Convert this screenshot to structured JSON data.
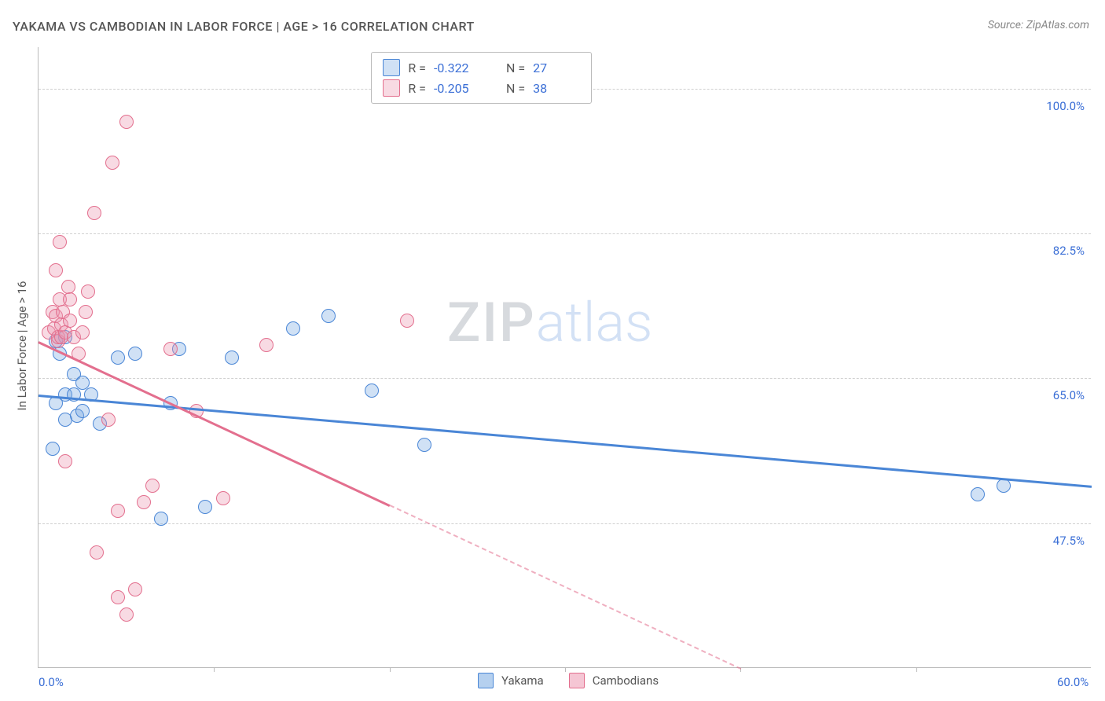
{
  "title": "YAKAMA VS CAMBODIAN IN LABOR FORCE | AGE > 16 CORRELATION CHART",
  "source_label": "Source: ZipAtlas.com",
  "y_axis_title": "In Labor Force | Age > 16",
  "watermark": {
    "a": "ZIP",
    "b": "atlas"
  },
  "chart": {
    "type": "scatter",
    "background_color": "#ffffff",
    "grid_color": "#d0d0d0",
    "axis_color": "#bbbbbb",
    "tick_label_color": "#3b6fd6",
    "title_color": "#555555",
    "xlim": [
      0,
      60
    ],
    "ylim": [
      30,
      105
    ],
    "x_ticks": [
      0,
      10,
      20,
      30,
      40,
      50,
      60
    ],
    "x_tick_labels_shown": {
      "0": "0.0%",
      "60": "60.0%"
    },
    "y_gridlines": [
      47.5,
      65.0,
      82.5,
      100.0
    ],
    "y_tick_labels": [
      "47.5%",
      "65.0%",
      "82.5%",
      "100.0%"
    ],
    "marker_radius": 9,
    "marker_border_width": 1.5,
    "marker_fill_opacity": 0.25,
    "series": [
      {
        "name": "Yakama",
        "color": "#4a86d6",
        "fill": "rgba(120,170,225,0.35)",
        "stroke": "#4a86d6",
        "R": "-0.322",
        "N": "27",
        "points": [
          [
            0.8,
            56.5
          ],
          [
            1.0,
            62.0
          ],
          [
            1.0,
            69.5
          ],
          [
            1.2,
            68.0
          ],
          [
            1.5,
            60.0
          ],
          [
            1.5,
            63.0
          ],
          [
            1.5,
            70.0
          ],
          [
            2.0,
            63.0
          ],
          [
            2.0,
            65.5
          ],
          [
            2.2,
            60.5
          ],
          [
            2.5,
            61.0
          ],
          [
            2.5,
            64.5
          ],
          [
            3.0,
            63.0
          ],
          [
            3.5,
            59.5
          ],
          [
            4.5,
            67.5
          ],
          [
            5.5,
            68.0
          ],
          [
            7.0,
            48.0
          ],
          [
            7.5,
            62.0
          ],
          [
            8.0,
            68.5
          ],
          [
            9.5,
            49.5
          ],
          [
            11.0,
            67.5
          ],
          [
            14.5,
            71.0
          ],
          [
            16.5,
            72.5
          ],
          [
            19.0,
            63.5
          ],
          [
            22.0,
            57.0
          ],
          [
            53.5,
            51.0
          ],
          [
            55.0,
            52.0
          ]
        ],
        "trend": {
          "x1": 0,
          "y1": 63.0,
          "x2": 60,
          "y2": 52.0,
          "dashed_from_x": null
        }
      },
      {
        "name": "Cambodians",
        "color": "#e36f8e",
        "fill": "rgba(235,150,175,0.35)",
        "stroke": "#e36f8e",
        "R": "-0.205",
        "N": "38",
        "points": [
          [
            0.6,
            70.5
          ],
          [
            0.8,
            73.0
          ],
          [
            0.9,
            71.0
          ],
          [
            1.0,
            72.5
          ],
          [
            1.0,
            78.0
          ],
          [
            1.1,
            69.5
          ],
          [
            1.1,
            70.0
          ],
          [
            1.2,
            74.5
          ],
          [
            1.2,
            81.5
          ],
          [
            1.3,
            70.0
          ],
          [
            1.3,
            71.5
          ],
          [
            1.4,
            73.0
          ],
          [
            1.5,
            55.0
          ],
          [
            1.5,
            70.5
          ],
          [
            1.7,
            76.0
          ],
          [
            1.8,
            72.0
          ],
          [
            1.8,
            74.5
          ],
          [
            2.0,
            70.0
          ],
          [
            2.3,
            68.0
          ],
          [
            2.5,
            70.5
          ],
          [
            2.7,
            73.0
          ],
          [
            2.8,
            75.5
          ],
          [
            3.2,
            85.0
          ],
          [
            3.3,
            44.0
          ],
          [
            4.0,
            60.0
          ],
          [
            4.2,
            91.0
          ],
          [
            4.5,
            38.5
          ],
          [
            4.5,
            49.0
          ],
          [
            5.0,
            36.5
          ],
          [
            5.0,
            96.0
          ],
          [
            5.5,
            39.5
          ],
          [
            6.0,
            50.0
          ],
          [
            6.5,
            52.0
          ],
          [
            7.5,
            68.5
          ],
          [
            9.0,
            61.0
          ],
          [
            10.5,
            50.5
          ],
          [
            13.0,
            69.0
          ],
          [
            21.0,
            72.0
          ]
        ],
        "trend": {
          "x1": 0,
          "y1": 69.5,
          "x2": 40,
          "y2": 30.0,
          "dashed_from_x": 20
        }
      }
    ]
  },
  "legend_top": {
    "r_label": "R =",
    "n_label": "N ="
  },
  "legend_bottom": {
    "items": [
      {
        "label": "Yakama",
        "fill": "rgba(120,170,225,0.55)",
        "stroke": "#4a86d6"
      },
      {
        "label": "Cambodians",
        "fill": "rgba(239,160,183,0.6)",
        "stroke": "#e36f8e"
      }
    ]
  }
}
